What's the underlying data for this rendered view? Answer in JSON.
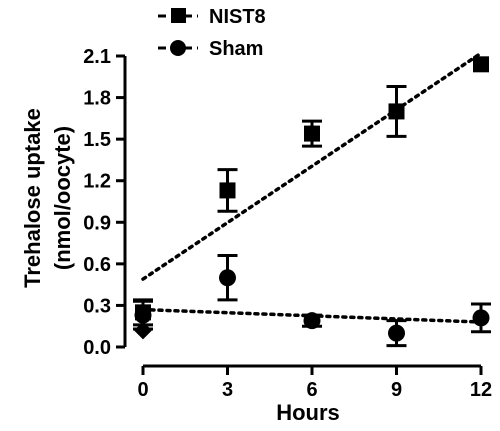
{
  "chart_data": {
    "type": "scatter",
    "x": [
      0,
      3,
      6,
      9,
      12
    ],
    "xlabel": "Hours",
    "ylabel_line1": "Trehalose uptake",
    "ylabel_line2": "(nmol/oocyte)",
    "xlim": [
      0,
      12
    ],
    "ylim": [
      0,
      2.1
    ],
    "xticks": [
      0,
      3,
      6,
      9,
      12
    ],
    "xtick_labels": [
      "0",
      "3",
      "6",
      "9",
      "12"
    ],
    "yticks": [
      0.0,
      0.3,
      0.6,
      0.9,
      1.2,
      1.5,
      1.8,
      2.1
    ],
    "ytick_labels": [
      "0.0",
      "0.3",
      "0.6",
      "0.9",
      "1.2",
      "1.5",
      "1.8",
      "2.1"
    ],
    "grid": false,
    "legend_position": "top-left",
    "series": [
      {
        "name": "NIST8",
        "marker": "square",
        "color": "#000000",
        "values": [
          0.25,
          1.13,
          1.54,
          1.7,
          2.04
        ],
        "errors": [
          0.09,
          0.15,
          0.09,
          0.18,
          0.0
        ],
        "trendline": {
          "style": "dotted",
          "x": [
            0,
            12
          ],
          "y": [
            0.49,
            2.12
          ]
        }
      },
      {
        "name": "Sham",
        "marker": "circle",
        "color": "#000000",
        "values": [
          0.23,
          0.5,
          0.19,
          0.1,
          0.21
        ],
        "errors": [
          0.1,
          0.16,
          0.04,
          0.09,
          0.1
        ],
        "trendline": {
          "style": "dotted",
          "x": [
            0,
            12
          ],
          "y": [
            0.27,
            0.18
          ]
        }
      }
    ],
    "extra_points": [
      {
        "marker": "diamond",
        "x": 0,
        "y": 0.12
      }
    ]
  }
}
